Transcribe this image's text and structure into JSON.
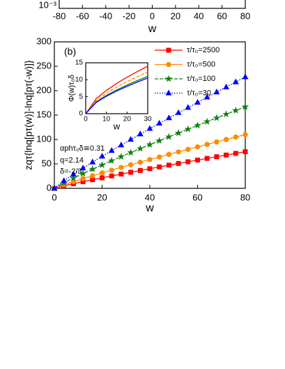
{
  "chart_data": [
    {
      "type": "line",
      "log_y": true,
      "xlim": [
        -80,
        80
      ],
      "xticks": [
        -80,
        -60,
        -40,
        -20,
        0,
        20,
        40,
        60,
        80
      ],
      "yticks": [
        {
          "value": 0.001,
          "label": "10⁻³"
        }
      ],
      "xlabel": "w"
    },
    {
      "type": "line",
      "xlabel": "w",
      "ylabel": "zqτ{lnq[pτ(w)]-lnq[pτ(-w)]}",
      "xlim": [
        0,
        80
      ],
      "xticks": [
        0,
        20,
        40,
        60,
        80
      ],
      "ylim": [
        0,
        300
      ],
      "yticks": [
        0,
        50,
        100,
        150,
        200,
        250,
        300
      ],
      "legend": "upper right",
      "annotations": [
        "(b)",
        "αphτ₀δ≅0.31",
        "q=2.14",
        "δ=-2/3"
      ],
      "x": [
        0,
        4,
        8,
        12,
        16,
        20,
        24,
        28,
        32,
        36,
        40,
        44,
        48,
        52,
        56,
        60,
        64,
        68,
        72,
        76,
        80
      ],
      "series": [
        {
          "name": "τ/τ₀=2500",
          "color": "#ff0000",
          "marker": "square",
          "dash": "solid",
          "values": [
            0,
            5.1,
            9.4,
            13.6,
            17.6,
            21.5,
            25.4,
            29.2,
            32.9,
            36.6,
            40.2,
            43.8,
            47.4,
            50.9,
            54.4,
            57.9,
            61.3,
            64.7,
            68.2,
            71.6,
            75
          ]
        },
        {
          "name": "τ/τ₀=500",
          "color": "#ff8c00",
          "marker": "circle",
          "dash": "solid",
          "values": [
            0,
            7.4,
            13.8,
            19.9,
            25.8,
            31.6,
            37.2,
            42.8,
            48.2,
            53.6,
            58.9,
            64.2,
            69.5,
            74.6,
            79.8,
            84.9,
            90,
            95,
            100,
            105,
            110
          ]
        },
        {
          "name": "τ/τ₀=100",
          "color": "#108010",
          "marker": "star",
          "dash": "dashed",
          "values": [
            0,
            11.3,
            21,
            30.3,
            39.2,
            47.9,
            56.5,
            64.9,
            73.2,
            81.4,
            89.5,
            97.5,
            105.5,
            113.3,
            121.2,
            128.9,
            136.6,
            144.2,
            151.9,
            159.4,
            167
          ]
        },
        {
          "name": "τ/τ₀=30",
          "color": "#0000ff",
          "marker": "triangle",
          "dash": "dotted",
          "values": [
            0,
            15.4,
            28.7,
            41.3,
            53.6,
            65.5,
            77.2,
            88.6,
            100,
            111.1,
            122.2,
            133.1,
            144,
            154.7,
            165.4,
            175.9,
            186.5,
            197,
            207.3,
            217.7,
            228
          ]
        }
      ]
    },
    {
      "type": "line",
      "xlabel": "w",
      "ylabel": "Φ(w)τ₀δ",
      "xlim": [
        0,
        30
      ],
      "xticks": [
        0,
        10,
        20,
        30
      ],
      "ylim": [
        0,
        15
      ],
      "yticks": [
        0,
        5,
        10,
        15
      ],
      "x": [
        0,
        5,
        10,
        15,
        20,
        25,
        30
      ],
      "series": [
        {
          "color": "#ff0000",
          "dash": "solid",
          "values": [
            0,
            4.37,
            6.85,
            8.92,
            10.75,
            12.42,
            14
          ]
        },
        {
          "color": "#ff8c00",
          "dash": "dashed",
          "values": [
            0,
            3.84,
            6.02,
            7.84,
            9.44,
            10.91,
            12.3
          ]
        },
        {
          "color": "#108010",
          "dash": "solid",
          "values": [
            0,
            3.43,
            5.39,
            7.01,
            8.45,
            9.76,
            11
          ]
        },
        {
          "color": "#0000ff",
          "dash": "solid",
          "values": [
            0,
            3.28,
            5.14,
            6.69,
            8.06,
            9.32,
            10.5
          ]
        }
      ]
    }
  ]
}
